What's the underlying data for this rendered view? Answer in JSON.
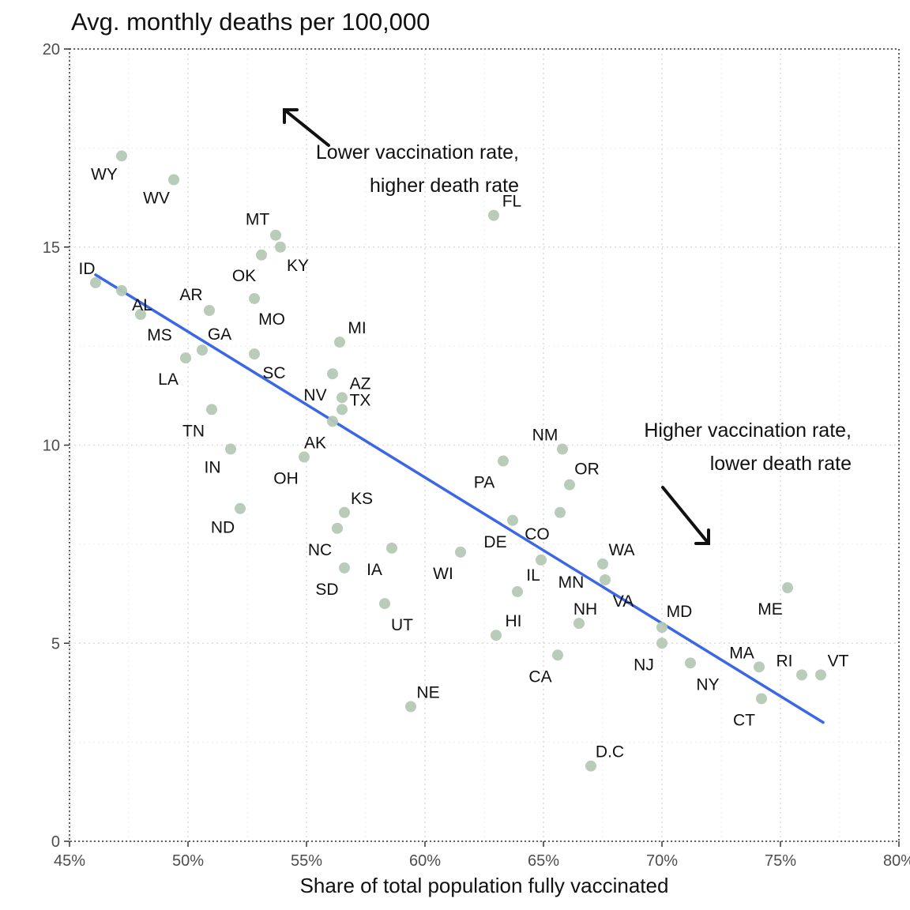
{
  "chart_data": {
    "type": "scatter",
    "title": "Avg. monthly deaths per 100,000",
    "xlabel": "Share of total population fully vaccinated",
    "ylabel": "",
    "xlim": [
      45,
      80
    ],
    "ylim": [
      0,
      20
    ],
    "x_ticks": [
      45,
      50,
      55,
      60,
      65,
      70,
      75,
      80
    ],
    "x_tick_labels": [
      "45%",
      "50%",
      "55%",
      "60%",
      "65%",
      "70%",
      "75%",
      "80%"
    ],
    "y_ticks": [
      0,
      5,
      10,
      15,
      20
    ],
    "y_tick_labels": [
      "0",
      "5",
      "10",
      "15",
      "20"
    ],
    "grid": true,
    "point_color": "#b5c9b5",
    "trend_color": "#3b66e8",
    "trend_line": {
      "x": [
        46.1,
        76.8
      ],
      "y": [
        14.3,
        3.0
      ]
    },
    "points": [
      {
        "label": "WY",
        "x": 47.2,
        "y": 17.3
      },
      {
        "label": "WV",
        "x": 49.4,
        "y": 16.7
      },
      {
        "label": "MT",
        "x": 53.7,
        "y": 15.3
      },
      {
        "label": "KY",
        "x": 53.9,
        "y": 15.0
      },
      {
        "label": "OK",
        "x": 53.1,
        "y": 14.8
      },
      {
        "label": "ID",
        "x": 46.1,
        "y": 14.1
      },
      {
        "label": "AL",
        "x": 47.2,
        "y": 13.9
      },
      {
        "label": "MS",
        "x": 48.0,
        "y": 13.3
      },
      {
        "label": "AR",
        "x": 50.9,
        "y": 13.4
      },
      {
        "label": "MO",
        "x": 52.8,
        "y": 13.7
      },
      {
        "label": "GA",
        "x": 50.6,
        "y": 12.4
      },
      {
        "label": "LA",
        "x": 49.9,
        "y": 12.2
      },
      {
        "label": "SC",
        "x": 52.8,
        "y": 12.3
      },
      {
        "label": "MI",
        "x": 56.4,
        "y": 12.6
      },
      {
        "label": "NV",
        "x": 56.1,
        "y": 11.8
      },
      {
        "label": "AZ",
        "x": 56.5,
        "y": 11.2
      },
      {
        "label": "TX",
        "x": 56.5,
        "y": 10.9
      },
      {
        "label": "AK",
        "x": 56.1,
        "y": 10.6
      },
      {
        "label": "TN",
        "x": 51.0,
        "y": 10.9
      },
      {
        "label": "IN",
        "x": 51.8,
        "y": 9.9
      },
      {
        "label": "OH",
        "x": 54.9,
        "y": 9.7
      },
      {
        "label": "FL",
        "x": 62.9,
        "y": 15.8
      },
      {
        "label": "NM",
        "x": 65.8,
        "y": 9.9
      },
      {
        "label": "OR",
        "x": 66.1,
        "y": 9.0
      },
      {
        "label": "PA",
        "x": 63.3,
        "y": 9.6
      },
      {
        "label": "CO",
        "x": 65.7,
        "y": 8.3
      },
      {
        "label": "DE",
        "x": 63.7,
        "y": 8.1
      },
      {
        "label": "KS",
        "x": 56.6,
        "y": 8.3
      },
      {
        "label": "NC",
        "x": 56.3,
        "y": 7.9
      },
      {
        "label": "ND",
        "x": 52.2,
        "y": 8.4
      },
      {
        "label": "IA",
        "x": 58.6,
        "y": 7.4
      },
      {
        "label": "WI",
        "x": 61.5,
        "y": 7.3
      },
      {
        "label": "SD",
        "x": 56.6,
        "y": 6.9
      },
      {
        "label": "MN",
        "x": 64.9,
        "y": 7.1
      },
      {
        "label": "WA",
        "x": 67.5,
        "y": 7.0
      },
      {
        "label": "VA",
        "x": 67.6,
        "y": 6.6
      },
      {
        "label": "IL",
        "x": 63.9,
        "y": 6.3
      },
      {
        "label": "UT",
        "x": 58.3,
        "y": 6.0
      },
      {
        "label": "ME",
        "x": 75.3,
        "y": 6.4
      },
      {
        "label": "MD",
        "x": 70.0,
        "y": 5.4
      },
      {
        "label": "HI",
        "x": 63.0,
        "y": 5.2
      },
      {
        "label": "NH",
        "x": 66.5,
        "y": 5.5
      },
      {
        "label": "CA",
        "x": 65.6,
        "y": 4.7
      },
      {
        "label": "NJ",
        "x": 70.0,
        "y": 5.0
      },
      {
        "label": "NY",
        "x": 71.2,
        "y": 4.5
      },
      {
        "label": "MA",
        "x": 74.1,
        "y": 4.4
      },
      {
        "label": "RI",
        "x": 75.9,
        "y": 4.2
      },
      {
        "label": "VT",
        "x": 76.7,
        "y": 4.2
      },
      {
        "label": "CT",
        "x": 74.2,
        "y": 3.6
      },
      {
        "label": "NE",
        "x": 59.4,
        "y": 3.4
      },
      {
        "label": "D.C",
        "x": 67.0,
        "y": 1.9
      }
    ],
    "annotations": [
      {
        "lines": [
          "Lower vaccination rate,",
          "higher death rate"
        ],
        "arrow": "up-left"
      },
      {
        "lines": [
          "Higher vaccination rate,",
          "lower death rate"
        ],
        "arrow": "down-right"
      }
    ]
  }
}
